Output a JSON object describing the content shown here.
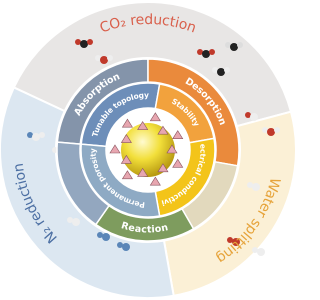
{
  "outer_sectors": [
    {
      "label": "CO₂ reduction"
    },
    {
      "label": "Water splitting"
    },
    {
      "label": "N₂ reduction"
    }
  ],
  "process_ring": [
    {
      "label": "Absorption"
    },
    {
      "label": "Desorption"
    },
    {
      "label": "Reaction"
    }
  ],
  "property_ring": [
    {
      "label": "Tunable topology"
    },
    {
      "label": "Stability"
    },
    {
      "label": "Electrical conductivity"
    },
    {
      "label": "Permanent porosity"
    }
  ]
}
